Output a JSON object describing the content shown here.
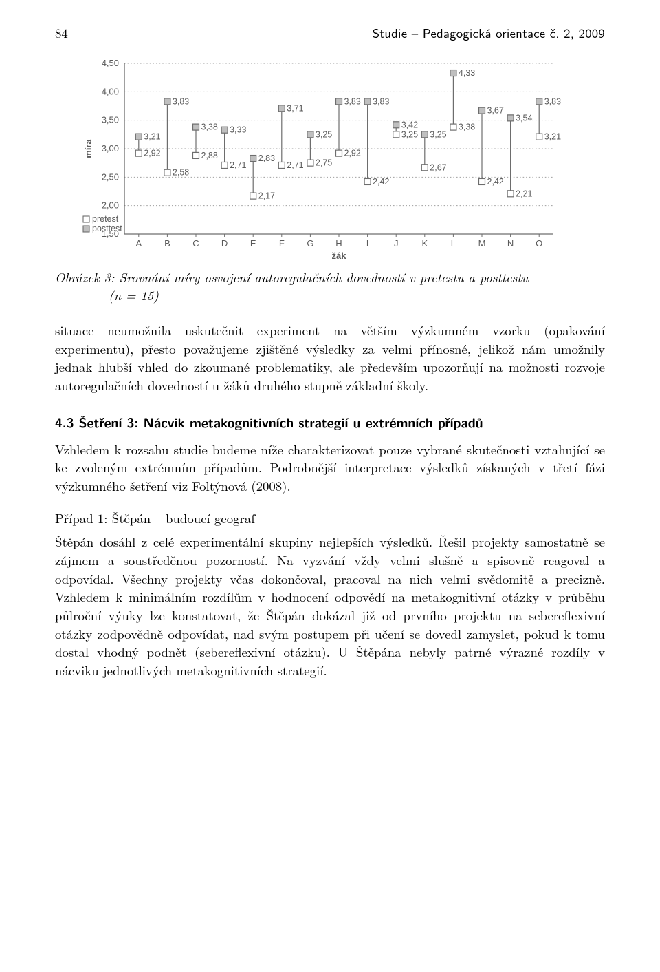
{
  "header": {
    "page_number": "84",
    "running_head": "Studie – Pedagogická orientace č. 2, 2009"
  },
  "chart": {
    "type": "dot-range",
    "x_label": "žák",
    "y_label": "míra",
    "categories": [
      "A",
      "B",
      "C",
      "D",
      "E",
      "F",
      "G",
      "H",
      "I",
      "J",
      "K",
      "L",
      "M",
      "N",
      "O"
    ],
    "ylim": [
      1.5,
      4.5
    ],
    "ytick_step": 0.5,
    "ytick_labels": [
      "1,50",
      "2,00",
      "2,50",
      "3,00",
      "3,50",
      "4,00",
      "4,50"
    ],
    "decimal_sep": ",",
    "grid_color": "#9e9e9e",
    "axis_color": "#6d6d6d",
    "background_color": "#ffffff",
    "marker_size": 9,
    "marker_stroke": "#6d6d6d",
    "pre_fill": "#ffffff",
    "post_fill": "#bfbfbf",
    "legend": {
      "pre": "pretest",
      "post": "posttest"
    },
    "axis_label_fontsize": 13,
    "tick_label_fontsize": 13,
    "value_label_fontsize": 12.5,
    "pretest": [
      2.92,
      2.58,
      2.88,
      2.71,
      2.17,
      2.71,
      2.75,
      2.92,
      2.42,
      3.25,
      2.67,
      3.38,
      2.42,
      2.21,
      3.21
    ],
    "posttest": [
      3.21,
      3.83,
      3.38,
      3.33,
      2.83,
      3.71,
      3.25,
      3.83,
      3.83,
      3.42,
      3.25,
      4.33,
      3.67,
      3.54,
      3.83
    ],
    "pretest_labels": [
      "2,92",
      "2,58",
      "2,88",
      "2,71",
      "2,17",
      "2,71",
      "2,75",
      "2,92",
      "2,42",
      "3,25",
      "2,67",
      "3,38",
      "2,42",
      "2,21",
      "3,21"
    ],
    "posttest_labels": [
      "3,21",
      "3,83",
      "3,38",
      "3,33",
      "2,83",
      "3,71",
      "3,25",
      "3,83",
      "3,83",
      "3,42",
      "3,25",
      "4,33",
      "3,67",
      "3,54",
      "3,83"
    ]
  },
  "caption": {
    "label": "Obrázek 3:",
    "text1": "Srovnání míry osvojení autoregulačních dovedností v pretestu a posttestu",
    "text2": "(n = 15)"
  },
  "intro_paragraph": "situace neumožnila uskutečnit experiment na větším výzkumném vzorku (opakování experimentu), přesto považujeme zjištěné výsledky za velmi přínosné, jelikož nám umožnily jednak hlubší vhled do zkoumané problematiky, ale především upozorňují na možnosti rozvoje autoregulačních dovedností u žáků druhého stupně základní školy.",
  "subsection_title": "4.3 Šetření 3: Nácvik metakognitivních strategií u extrémních případů",
  "subsection_paragraph": "Vzhledem k rozsahu studie budeme níže charakterizovat pouze vybrané skutečnosti vztahující se ke zvoleným extrémním případům. Podrobnější interpretace výsledků získaných v třetí fázi výzkumného šetření viz Foltýnová (2008).",
  "case1_heading": "Případ 1: Štěpán – budoucí geograf",
  "case1_paragraph": "Štěpán dosáhl z celé experimentální skupiny nejlepších výsledků. Řešil projekty samostatně se zájmem a soustředěnou pozorností. Na vyzvání vždy velmi slušně a spisovně reagoval a odpovídal. Všechny projekty včas dokončoval, pracoval na nich velmi svědomitě a precizně. Vzhledem k minimálním rozdílům v hodnocení odpovědí na metakognitivní otázky v průběhu půlroční výuky lze konstatovat, že Štěpán dokázal již od prvního projektu na sebereflexivní otázky zodpovědně odpovídat, nad svým postupem při učení se dovedl zamyslet, pokud k tomu dostal vhodný podnět (sebereflexivní otázku). U Štěpána nebyly patrné výrazné rozdíly v nácviku jednotlivých metakognitivních strategií."
}
